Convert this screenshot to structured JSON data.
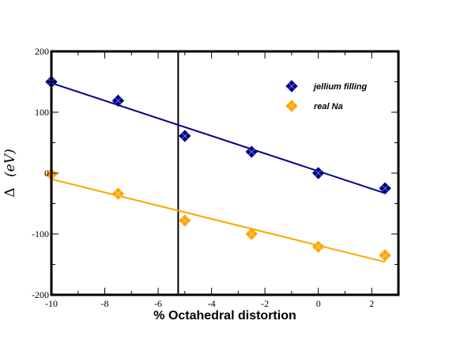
{
  "chart_data": {
    "type": "scatter",
    "title": "",
    "xlabel": "% Octahedral distortion",
    "ylabel_symbol": "Δ",
    "ylabel_unit": "(eV)",
    "xlim": [
      -10,
      3
    ],
    "ylim": [
      -200,
      200
    ],
    "x_ticks": [
      -10,
      -8,
      -6,
      -4,
      -2,
      0,
      2
    ],
    "y_ticks": [
      -200,
      -100,
      0,
      100,
      200
    ],
    "grid": false,
    "legend_position": "top-right",
    "vertical_reference_line_x": -5.25,
    "series": [
      {
        "name": "jellium filling",
        "color": "#00008b",
        "marker": "diamond",
        "x": [
          -10,
          -7.5,
          -5,
          -2.5,
          0,
          2.5
        ],
        "y": [
          150,
          119,
          61,
          35,
          0,
          -25
        ],
        "fit_line": {
          "x": [
            -10,
            2.5
          ],
          "y": [
            148,
            -33
          ]
        }
      },
      {
        "name": "real Na",
        "color": "#ffa500",
        "marker": "diamond",
        "x": [
          -10,
          -7.5,
          -5,
          -2.5,
          0,
          2.5
        ],
        "y": [
          -2,
          -34,
          -78,
          -100,
          -121,
          -135
        ],
        "fit_line": {
          "x": [
            -10,
            2.5
          ],
          "y": [
            -10,
            -146
          ]
        }
      }
    ]
  }
}
